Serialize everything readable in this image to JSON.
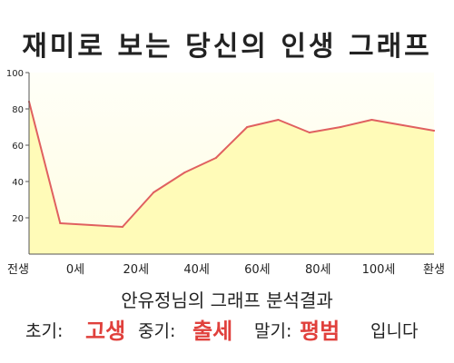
{
  "title": "재미로 보는 당신의 인생 그래프",
  "chart_data": {
    "type": "area",
    "x_tick_labels": [
      "전생",
      "0세",
      "20세",
      "40세",
      "60세",
      "80세",
      "100세",
      "환생"
    ],
    "y_ticks": [
      20,
      40,
      60,
      80,
      100
    ],
    "ylim": [
      0,
      100
    ],
    "grid": false,
    "series": [
      {
        "values": [
          84,
          17,
          16,
          15,
          34,
          45,
          53,
          70,
          74,
          67,
          70,
          74,
          71,
          68
        ]
      }
    ]
  },
  "result": {
    "title": "안유정님의 그래프 분석결과",
    "early_label": "초기:",
    "early_value": "고생",
    "mid_label": "중기:",
    "mid_value": "출세",
    "late_label": "말기:",
    "late_value": "평범",
    "ending": "입니다"
  },
  "colors": {
    "line": "#e06060",
    "fill": "#fffbb8",
    "plot_bg": "#fffff0",
    "highlight": "#e0403c"
  }
}
